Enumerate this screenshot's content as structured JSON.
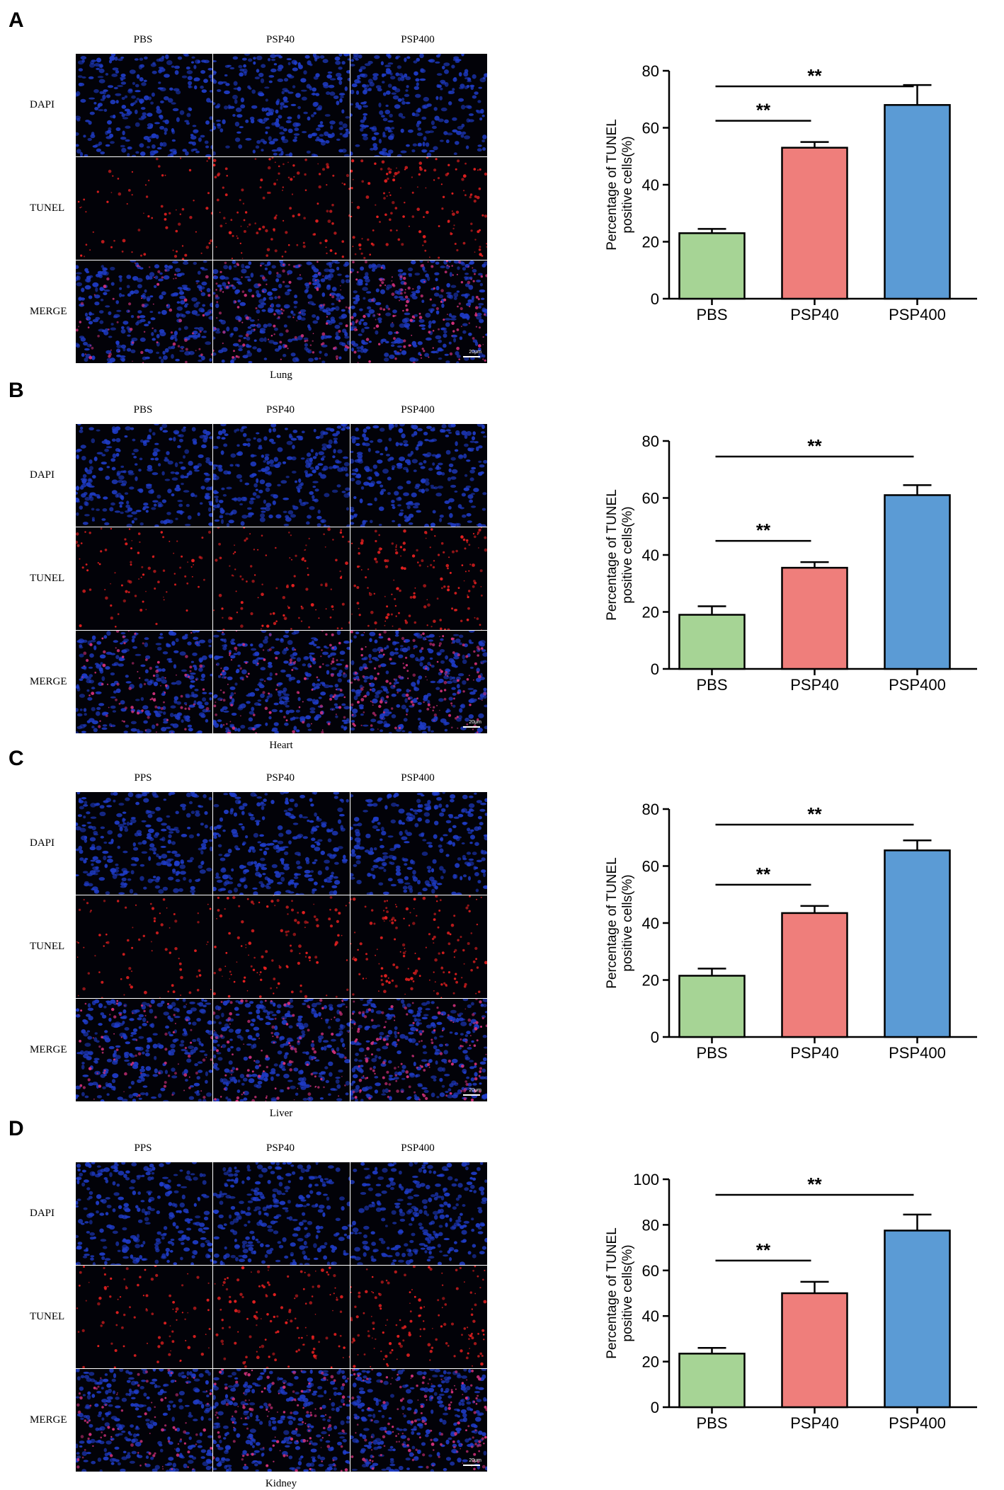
{
  "colors": {
    "dapi": "#1f3cc8",
    "tunel": "#e52020",
    "pbs_bar": "#a6d495",
    "psp40_bar": "#ef7e7b",
    "psp400_bar": "#5b9bd5"
  },
  "panels": [
    {
      "letter": "A",
      "micrograph": {
        "columns": [
          "PBS",
          "PSP40",
          "PSP400"
        ],
        "rows": [
          "DAPI",
          "TUNEL",
          "MERGE"
        ],
        "tissue": "Lung",
        "scalebar": "20μm",
        "tunel_density": [
          0.25,
          0.55,
          0.7
        ]
      },
      "chart_data": {
        "type": "bar",
        "categories": [
          "PBS",
          "PSP40",
          "PSP400"
        ],
        "values": [
          23,
          53,
          68
        ],
        "errors": [
          1.5,
          2,
          7
        ],
        "ylabel": "Percentage of TUNEL positive cells(%)",
        "ylim": [
          0,
          80
        ],
        "yticks": [
          0,
          20,
          40,
          60,
          80
        ],
        "significance": [
          {
            "from": 0,
            "to": 1,
            "label": "**"
          },
          {
            "from": 0,
            "to": 2,
            "label": "**"
          }
        ]
      }
    },
    {
      "letter": "B",
      "micrograph": {
        "columns": [
          "PBS",
          "PSP40",
          "PSP400"
        ],
        "rows": [
          "DAPI",
          "TUNEL",
          "MERGE"
        ],
        "tissue": "Heart",
        "scalebar": "20μm",
        "tunel_density": [
          0.35,
          0.5,
          0.8
        ]
      },
      "chart_data": {
        "type": "bar",
        "categories": [
          "PBS",
          "PSP40",
          "PSP400"
        ],
        "values": [
          19,
          35.5,
          61
        ],
        "errors": [
          3,
          2,
          3.5
        ],
        "ylabel": "Percentage of TUNEL positive cells(%)",
        "ylim": [
          0,
          80
        ],
        "yticks": [
          0,
          20,
          40,
          60,
          80
        ],
        "significance": [
          {
            "from": 0,
            "to": 1,
            "label": "**"
          },
          {
            "from": 0,
            "to": 2,
            "label": "**"
          }
        ]
      }
    },
    {
      "letter": "C",
      "micrograph": {
        "columns": [
          "PPS",
          "PSP40",
          "PSP400"
        ],
        "rows": [
          "DAPI",
          "TUNEL",
          "MERGE"
        ],
        "tissue": "Liver",
        "scalebar": "20μm",
        "tunel_density": [
          0.3,
          0.55,
          0.75
        ]
      },
      "chart_data": {
        "type": "bar",
        "categories": [
          "PBS",
          "PSP40",
          "PSP400"
        ],
        "values": [
          21.5,
          43.5,
          65.5
        ],
        "errors": [
          2.5,
          2.5,
          3.5
        ],
        "ylabel": "Percentage of TUNEL positive cells(%)",
        "ylim": [
          0,
          80
        ],
        "yticks": [
          0,
          20,
          40,
          60,
          80
        ],
        "significance": [
          {
            "from": 0,
            "to": 1,
            "label": "**"
          },
          {
            "from": 0,
            "to": 2,
            "label": "**"
          }
        ]
      }
    },
    {
      "letter": "D",
      "micrograph": {
        "columns": [
          "PPS",
          "PSP40",
          "PSP400"
        ],
        "rows": [
          "DAPI",
          "TUNEL",
          "MERGE"
        ],
        "tissue": "Kidney",
        "scalebar": "20μm",
        "tunel_density": [
          0.35,
          0.6,
          0.7
        ]
      },
      "chart_data": {
        "type": "bar",
        "categories": [
          "PBS",
          "PSP40",
          "PSP400"
        ],
        "values": [
          23.5,
          50,
          77.5
        ],
        "errors": [
          2.5,
          5,
          7
        ],
        "ylabel": "Percentage of TUNEL positive cells(%)",
        "ylim": [
          0,
          100
        ],
        "yticks": [
          0,
          20,
          40,
          60,
          80,
          100
        ],
        "significance": [
          {
            "from": 0,
            "to": 1,
            "label": "**"
          },
          {
            "from": 0,
            "to": 2,
            "label": "**"
          }
        ]
      }
    }
  ]
}
